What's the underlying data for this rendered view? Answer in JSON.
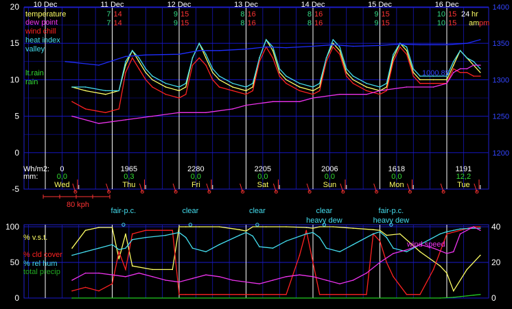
{
  "chart_data": [
    {
      "type": "line",
      "x_unit": "day offset from 10 Dec 00:00",
      "days": [
        {
          "date": "10 Dec",
          "weekday": "Wed",
          "tmin": "",
          "tmax": "",
          "wh": "0",
          "mm": "0,0",
          "offset": 0
        },
        {
          "date": "11 Dec",
          "weekday": "Thu",
          "tmin": "7",
          "tmax": "14",
          "wh": "1965",
          "mm": "0,3",
          "offset": 1
        },
        {
          "date": "12 Dec",
          "weekday": "Fri",
          "tmin": "9",
          "tmax": "15",
          "wh": "2280",
          "mm": "0,0",
          "offset": 2
        },
        {
          "date": "13 Dec",
          "weekday": "Sat",
          "tmin": "8",
          "tmax": "16",
          "wh": "2205",
          "mm": "0,0",
          "offset": 3
        },
        {
          "date": "14 Dec",
          "weekday": "Sun",
          "tmin": "8",
          "tmax": "16",
          "wh": "2006",
          "mm": "0,0",
          "offset": 4
        },
        {
          "date": "15 Dec",
          "weekday": "Mon",
          "tmin": "9",
          "tmax": "15",
          "wh": "1618",
          "mm": "0,0",
          "offset": 5
        },
        {
          "date": "16 Dec",
          "weekday": "Tue",
          "tmin": "10",
          "tmax": "15",
          "wh": "1191",
          "mm": "12,2",
          "offset": 6
        }
      ],
      "legend": [
        "temperature",
        "dew point",
        "wind chill",
        "heat index",
        "valley",
        "lt.rain",
        "rain"
      ],
      "left_ticks": [
        "20",
        "15",
        "10",
        "5",
        "0",
        "-5"
      ],
      "right_ticks": [
        "1400",
        "1350",
        "1300",
        "1250",
        "1200"
      ],
      "ylim_left": [
        -5,
        20
      ],
      "ylim_right": [
        1150,
        1400
      ],
      "row_labels": {
        "wh": "Wh/m2:",
        "mm": "mm:"
      },
      "corner_labels": {
        "h24": "24",
        "hr": "hr",
        "am": "am",
        "pm": "pm"
      },
      "pressure_label": "1000.85",
      "wind_scale_label": "80 kph",
      "series": [
        {
          "name": "temperature",
          "color": "#ffff66",
          "x": [
            0.4,
            0.6,
            0.9,
            1.1,
            1.2,
            1.3,
            1.4,
            1.5,
            1.6,
            1.8,
            2.0,
            2.1,
            2.2,
            2.3,
            2.4,
            2.5,
            2.6,
            2.8,
            3.0,
            3.1,
            3.2,
            3.3,
            3.4,
            3.5,
            3.6,
            3.8,
            4.0,
            4.1,
            4.2,
            4.3,
            4.4,
            4.5,
            4.6,
            4.8,
            5.0,
            5.1,
            5.2,
            5.3,
            5.4,
            5.5,
            5.6,
            5.8,
            6.0,
            6.1,
            6.2,
            6.3,
            6.4,
            6.5
          ],
          "y": [
            9,
            8.5,
            8,
            8.5,
            12,
            14,
            12.5,
            11,
            10,
            9,
            8.5,
            9,
            13,
            15,
            13,
            11,
            10,
            9,
            8.5,
            9,
            13,
            15.5,
            14,
            11,
            10,
            9,
            8.5,
            9,
            13,
            15,
            14,
            11,
            10,
            9,
            8.5,
            9,
            13,
            15,
            14,
            11,
            10,
            10,
            10,
            12,
            14,
            13,
            12,
            11
          ]
        },
        {
          "name": "heat index",
          "color": "#44ddee",
          "x": [
            0.4,
            0.6,
            0.9,
            1.1,
            1.2,
            1.3,
            1.4,
            1.5,
            1.6,
            1.8,
            2.0,
            2.1,
            2.2,
            2.3,
            2.4,
            2.5,
            2.6,
            2.8,
            3.0,
            3.1,
            3.2,
            3.3,
            3.4,
            3.5,
            3.6,
            3.8,
            4.0,
            4.1,
            4.2,
            4.3,
            4.4,
            4.5,
            4.6,
            4.8,
            5.0,
            5.1,
            5.2,
            5.3,
            5.4,
            5.5,
            5.6,
            5.8,
            6.0,
            6.1,
            6.2,
            6.3,
            6.4,
            6.5
          ],
          "y": [
            9,
            9,
            8.5,
            8.5,
            12.5,
            14,
            13,
            11.5,
            10.5,
            9.5,
            9,
            9.5,
            13,
            15,
            13.5,
            11.5,
            10.5,
            9.5,
            9,
            9.5,
            13,
            15.5,
            14.5,
            11.5,
            10.5,
            9.5,
            9,
            9.5,
            13,
            15.5,
            14.5,
            11.5,
            10.5,
            9.5,
            9,
            9.5,
            13.5,
            15,
            14.5,
            11.5,
            10.5,
            10.5,
            10.5,
            12.5,
            14,
            13,
            12.5,
            11.5
          ]
        },
        {
          "name": "wind chill",
          "color": "#ff2222",
          "x": [
            0.4,
            0.6,
            0.9,
            1.1,
            1.2,
            1.3,
            1.4,
            1.5,
            1.6,
            1.8,
            2.0,
            2.1,
            2.2,
            2.3,
            2.4,
            2.5,
            2.6,
            2.8,
            3.0,
            3.1,
            3.2,
            3.3,
            3.4,
            3.5,
            3.6,
            3.8,
            4.0,
            4.1,
            4.2,
            4.3,
            4.4,
            4.5,
            4.6,
            4.8,
            5.0,
            5.1,
            5.2,
            5.3,
            5.4,
            5.5,
            5.6,
            5.8,
            6.0,
            6.1,
            6.2,
            6.3,
            6.4,
            6.5
          ],
          "y": [
            7,
            6,
            5.5,
            6,
            11,
            13,
            11.5,
            10,
            9,
            8,
            7.5,
            8,
            12,
            13,
            12,
            10,
            9,
            8.5,
            8,
            8.5,
            12.5,
            14.5,
            13,
            10.5,
            9.5,
            8.5,
            8,
            8.5,
            12.5,
            14.5,
            13.5,
            10.5,
            9.5,
            8.5,
            8,
            8.5,
            12.5,
            14.5,
            13.5,
            10.5,
            9.5,
            9.5,
            9.5,
            11.5,
            11,
            11,
            10.5,
            10.5
          ]
        },
        {
          "name": "dew point",
          "color": "#ee33ee",
          "x": [
            0.4,
            0.8,
            1.2,
            1.6,
            2.0,
            2.4,
            2.8,
            3.0,
            3.4,
            3.8,
            4.0,
            4.4,
            4.8,
            5.0,
            5.4,
            5.8,
            6.0,
            6.1,
            6.2,
            6.3,
            6.4,
            6.5
          ],
          "y": [
            5,
            4,
            4.5,
            5,
            5.5,
            5.5,
            6,
            6.5,
            7,
            7,
            7.5,
            8,
            8,
            8.5,
            9,
            9,
            9.5,
            11,
            11.5,
            11.5,
            12,
            12
          ]
        },
        {
          "name": "valley",
          "color": "#1f2dff",
          "x": [
            0.3,
            0.8,
            1.2,
            1.5,
            2.0,
            2.3,
            2.6,
            3.0,
            3.3,
            3.6,
            4.0,
            4.3,
            4.6,
            5.0,
            5.3,
            5.6,
            6.0,
            6.3,
            6.5
          ],
          "y": [
            12.5,
            12,
            13.2,
            13.4,
            13.5,
            14,
            14,
            14.2,
            14.5,
            14.4,
            14.6,
            14.8,
            14.6,
            14.7,
            14.9,
            14.8,
            14.8,
            15,
            15.5
          ]
        }
      ]
    },
    {
      "type": "line",
      "sky_labels": [
        {
          "text": "fair-p.c.",
          "offset": 1.25,
          "dew": ""
        },
        {
          "text": "clear",
          "offset": 2.25,
          "dew": ""
        },
        {
          "text": "clear",
          "offset": 3.25,
          "dew": ""
        },
        {
          "text": "clear",
          "offset": 4.25,
          "dew": "heavy dew"
        },
        {
          "text": "fair-p.c.",
          "offset": 5.25,
          "dew": "heavy dew"
        }
      ],
      "legend": [
        "% v.s.t.",
        "% cld cover",
        "% rel hum",
        "total precip"
      ],
      "wind_speed_label": "wind speed",
      "left_ticks": [
        "100",
        "50",
        "0"
      ],
      "right_ticks": [
        "40",
        "20",
        "0"
      ],
      "ylim_left": [
        0,
        100
      ],
      "ylim_right": [
        0,
        40
      ],
      "series": [
        {
          "name": "% v.s.t.",
          "color": "#ffff66",
          "x": [
            0.4,
            0.6,
            0.8,
            1.0,
            1.1,
            1.2,
            1.3,
            1.6,
            1.9,
            2.0,
            2.1,
            2.3,
            2.6,
            2.9,
            3.0,
            3.1,
            3.3,
            3.6,
            3.9,
            4.0,
            4.1,
            4.3,
            4.6,
            4.9,
            5.0,
            5.1,
            5.3,
            5.6,
            5.9,
            6.0,
            6.1,
            6.3,
            6.5
          ],
          "y": [
            70,
            95,
            99,
            99,
            55,
            90,
            45,
            40,
            40,
            100,
            100,
            100,
            100,
            96,
            94,
            100,
            100,
            100,
            99,
            98,
            100,
            100,
            98,
            96,
            95,
            88,
            90,
            65,
            45,
            35,
            10,
            40,
            60
          ]
        },
        {
          "name": "% cld cover",
          "color": "#ff2222",
          "x": [
            0.4,
            0.6,
            0.8,
            1.0,
            1.1,
            1.2,
            1.3,
            1.5,
            1.9,
            2.0,
            2.1,
            2.2,
            2.5,
            2.9,
            3.0,
            3.1,
            3.3,
            3.6,
            3.8,
            3.9,
            4.0,
            4.1,
            4.2,
            4.5,
            4.8,
            4.9,
            5.0,
            5.1,
            5.2,
            5.4,
            5.6,
            5.8,
            6.0,
            6.2,
            6.4,
            6.5
          ],
          "y": [
            10,
            15,
            10,
            20,
            65,
            40,
            90,
            95,
            95,
            5,
            5,
            5,
            5,
            5,
            5,
            5,
            5,
            5,
            60,
            95,
            50,
            5,
            5,
            5,
            5,
            90,
            80,
            50,
            30,
            5,
            5,
            40,
            90,
            95,
            100,
            100
          ]
        },
        {
          "name": "% rel hum",
          "color": "#44ddee",
          "x": [
            0.4,
            0.6,
            0.8,
            1.0,
            1.1,
            1.2,
            1.3,
            1.5,
            1.8,
            2.0,
            2.1,
            2.2,
            2.4,
            2.6,
            2.9,
            3.0,
            3.1,
            3.2,
            3.4,
            3.6,
            3.9,
            4.0,
            4.1,
            4.2,
            4.4,
            4.6,
            4.9,
            5.0,
            5.1,
            5.2,
            5.4,
            5.6,
            5.9,
            6.0,
            6.1,
            6.2,
            6.4,
            6.5
          ],
          "y": [
            60,
            65,
            70,
            75,
            68,
            70,
            82,
            85,
            88,
            92,
            85,
            70,
            65,
            75,
            88,
            92,
            87,
            72,
            70,
            80,
            90,
            92,
            85,
            70,
            65,
            75,
            90,
            93,
            85,
            70,
            65,
            75,
            90,
            93,
            95,
            97,
            98,
            98
          ]
        },
        {
          "name": "total precip",
          "color": "#22cc22",
          "x": [
            0.4,
            5.9,
            6.0,
            6.1,
            6.2,
            6.3,
            6.4,
            6.5
          ],
          "y": [
            0,
            0,
            0.5,
            1,
            2,
            3,
            4,
            5
          ]
        },
        {
          "name": "wind speed",
          "color": "#ee33ee",
          "x": [
            0.4,
            0.6,
            0.8,
            1.0,
            1.2,
            1.4,
            1.6,
            1.8,
            2.0,
            2.2,
            2.4,
            2.6,
            2.8,
            3.0,
            3.2,
            3.4,
            3.6,
            3.8,
            4.0,
            4.2,
            4.4,
            4.6,
            4.8,
            5.0,
            5.2,
            5.4,
            5.6,
            5.8,
            6.0,
            6.1,
            6.2,
            6.3,
            6.4,
            6.5
          ],
          "y": [
            10,
            14,
            14,
            13,
            12,
            14,
            12,
            10,
            9,
            11,
            13,
            12,
            10,
            9,
            8,
            10,
            12,
            13,
            12,
            10,
            8,
            10,
            14,
            20,
            25,
            27,
            30,
            28,
            25,
            26,
            36,
            38,
            40,
            38
          ]
        }
      ]
    }
  ]
}
